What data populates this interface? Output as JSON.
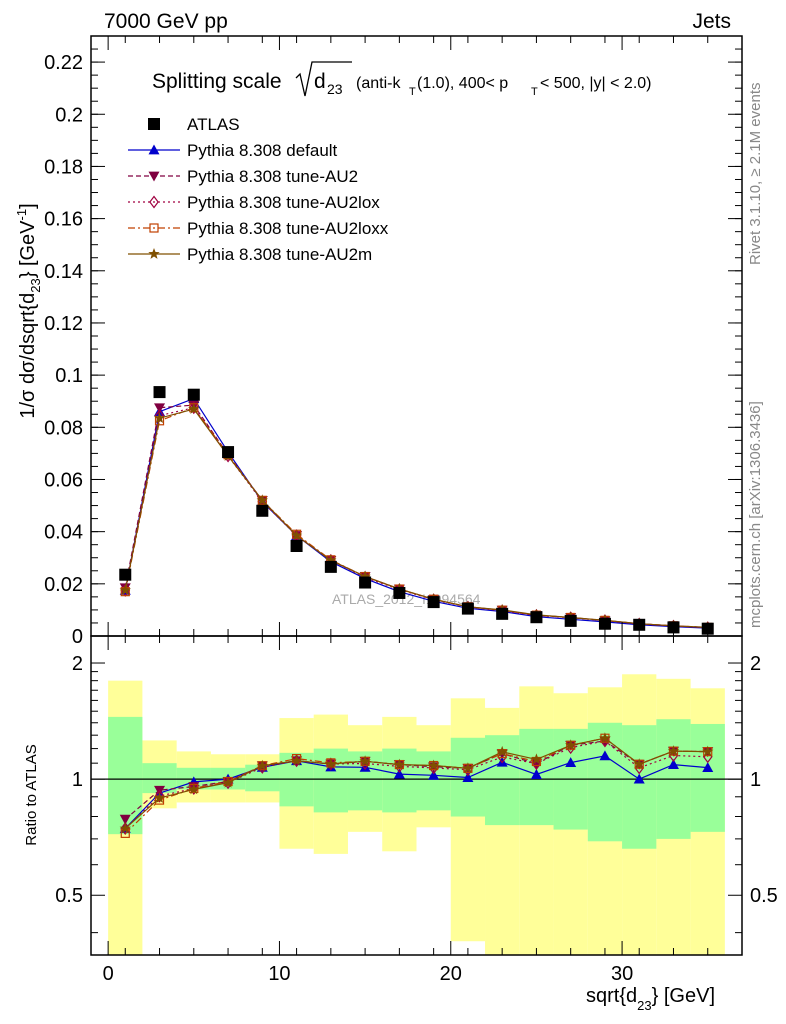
{
  "header": {
    "left": "7000 GeV pp",
    "right": "Jets"
  },
  "side_text": {
    "rivet": "Rivet 3.1.10, ≥ 2.1M events",
    "mcplots": "mcplots.cern.ch [arXiv:1306.3436]"
  },
  "watermark": "ATLAS_2012_I1094564",
  "chart_data": {
    "type": "line",
    "title_prefix": "Splitting scale",
    "title_suffix": "(anti-k",
    "title_rest": "(1.0), 400< p",
    "title_end": "< 500, |y| < 2.0)",
    "ylabel_main": "1/σ dσ/dsqrt{d",
    "ylabel_ratio": "Ratio to ATLAS",
    "xlabel": "sqrt{d",
    "xlabel_unit": "} [GeV]",
    "xlim": [
      -1,
      37
    ],
    "ylim": [
      0,
      0.23
    ],
    "ratio_ylim": [
      0.35,
      2.35
    ],
    "x_ticks": [
      "0",
      "10",
      "20",
      "30"
    ],
    "y_ticks": [
      "0",
      "0.02",
      "0.04",
      "0.06",
      "0.08",
      "0.1",
      "0.12",
      "0.14",
      "0.16",
      "0.18",
      "0.2",
      "0.22"
    ],
    "ratio_y_ticks": [
      "0.5",
      "1",
      "2"
    ],
    "x": [
      1,
      3,
      5,
      7,
      9,
      11,
      13,
      15,
      17,
      19,
      21,
      23,
      25,
      27,
      29,
      31,
      33,
      35
    ],
    "bin_edges": [
      0,
      2,
      4,
      6,
      8,
      10,
      12,
      14,
      16,
      18,
      20,
      22,
      24,
      26,
      28,
      30,
      32,
      34,
      36
    ],
    "data": {
      "name": "ATLAS",
      "values": [
        0.0235,
        0.0935,
        0.0925,
        0.0705,
        0.048,
        0.0345,
        0.0265,
        0.0205,
        0.0165,
        0.013,
        0.0105,
        0.0085,
        0.0072,
        0.0058,
        0.0047,
        0.0043,
        0.0033,
        0.0028
      ]
    },
    "ratio_band_inner": [
      [
        0.72,
        1.45
      ],
      [
        0.92,
        1.1
      ],
      [
        0.94,
        1.07
      ],
      [
        0.94,
        1.07
      ],
      [
        0.93,
        1.09
      ],
      [
        0.85,
        1.17
      ],
      [
        0.82,
        1.2
      ],
      [
        0.83,
        1.18
      ],
      [
        0.82,
        1.2
      ],
      [
        0.83,
        1.18
      ],
      [
        0.8,
        1.28
      ],
      [
        0.76,
        1.3
      ],
      [
        0.76,
        1.35
      ],
      [
        0.74,
        1.35
      ],
      [
        0.69,
        1.4
      ],
      [
        0.66,
        1.38
      ],
      [
        0.7,
        1.43
      ],
      [
        0.73,
        1.39
      ]
    ],
    "ratio_band_outer": [
      [
        0.35,
        1.8
      ],
      [
        0.84,
        1.26
      ],
      [
        0.87,
        1.18
      ],
      [
        0.87,
        1.16
      ],
      [
        0.87,
        1.16
      ],
      [
        0.66,
        1.44
      ],
      [
        0.64,
        1.47
      ],
      [
        0.73,
        1.38
      ],
      [
        0.65,
        1.45
      ],
      [
        0.75,
        1.38
      ],
      [
        0.38,
        1.62
      ],
      [
        0.35,
        1.53
      ],
      [
        0.35,
        1.74
      ],
      [
        0.35,
        1.67
      ],
      [
        0.35,
        1.73
      ],
      [
        0.35,
        1.87
      ],
      [
        0.35,
        1.82
      ],
      [
        0.35,
        1.72
      ]
    ],
    "series": [
      {
        "name": "Pythia 8.308 default",
        "color": "#0000cc",
        "marker": "triangle-up",
        "dash": "",
        "values": [
          0.0175,
          0.086,
          0.091,
          0.0705,
          0.0515,
          0.0385,
          0.0285,
          0.022,
          0.017,
          0.0133,
          0.0106,
          0.0094,
          0.0074,
          0.0064,
          0.0054,
          0.0043,
          0.0036,
          0.003
        ]
      },
      {
        "name": "Pythia 8.308 tune-AU2",
        "color": "#800040",
        "marker": "triangle-down",
        "dash": "5,3",
        "values": [
          0.0185,
          0.0875,
          0.0885,
          0.0695,
          0.052,
          0.0385,
          0.029,
          0.0228,
          0.018,
          0.014,
          0.0112,
          0.0099,
          0.0079,
          0.0071,
          0.0059,
          0.0047,
          0.0039,
          0.0033
        ]
      },
      {
        "name": "Pythia 8.308 tune-AU2lox",
        "color": "#a00040",
        "marker": "diamond-open",
        "dash": "2,3",
        "values": [
          0.0175,
          0.0845,
          0.0875,
          0.069,
          0.0515,
          0.0385,
          0.029,
          0.0225,
          0.0178,
          0.0139,
          0.0111,
          0.0097,
          0.0079,
          0.007,
          0.0059,
          0.0046,
          0.0038,
          0.0032
        ]
      },
      {
        "name": "Pythia 8.308 tune-AU2loxx",
        "color": "#c04000",
        "marker": "square-open",
        "dash": "7,3,2,3",
        "values": [
          0.017,
          0.0825,
          0.0875,
          0.0695,
          0.052,
          0.039,
          0.0292,
          0.0228,
          0.018,
          0.0141,
          0.0112,
          0.0099,
          0.008,
          0.0071,
          0.006,
          0.0047,
          0.0039,
          0.0033
        ]
      },
      {
        "name": "Pythia 8.308 tune-AU2m",
        "color": "#805000",
        "marker": "star",
        "dash": "",
        "values": [
          0.0175,
          0.0835,
          0.087,
          0.069,
          0.052,
          0.0385,
          0.029,
          0.0228,
          0.018,
          0.0141,
          0.0112,
          0.01,
          0.0081,
          0.0071,
          0.006,
          0.0047,
          0.0039,
          0.0033
        ]
      }
    ]
  }
}
